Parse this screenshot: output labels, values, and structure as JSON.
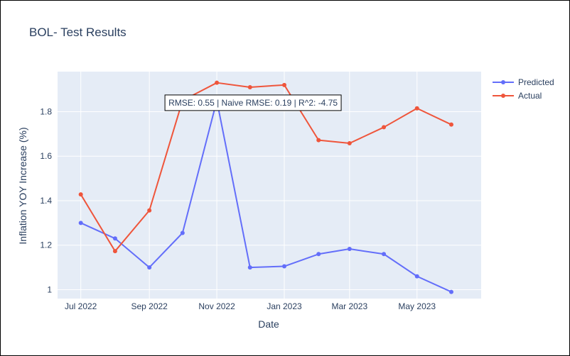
{
  "chart_data": {
    "type": "line",
    "title": "BOL- Test Results",
    "xlabel": "Date",
    "ylabel": "Inflation YOY Increase (%)",
    "x": [
      "2022-07-01",
      "2022-08-01",
      "2022-09-01",
      "2022-10-01",
      "2022-11-01",
      "2022-12-01",
      "2023-01-01",
      "2023-02-01",
      "2023-03-01",
      "2023-04-01",
      "2023-05-01",
      "2023-06-01"
    ],
    "x_ticks": [
      {
        "date": "2022-07-01",
        "label": "Jul 2022"
      },
      {
        "date": "2022-09-01",
        "label": "Sep 2022"
      },
      {
        "date": "2022-11-01",
        "label": "Nov 2022"
      },
      {
        "date": "2023-01-01",
        "label": "Jan 2023"
      },
      {
        "date": "2023-03-01",
        "label": "Mar 2023"
      },
      {
        "date": "2023-05-01",
        "label": "May 2023"
      }
    ],
    "y_ticks": [
      1,
      1.2,
      1.4,
      1.6,
      1.8
    ],
    "y_tick_labels": [
      "1",
      "1.2",
      "1.4",
      "1.6",
      "1.8"
    ],
    "xlim": [
      "2022-06-10",
      "2023-06-28"
    ],
    "ylim": [
      0.96,
      1.98
    ],
    "grid": true,
    "legend_position": "top-right",
    "series": [
      {
        "name": "Predicted",
        "color": "#636efa",
        "values": [
          1.3,
          1.23,
          1.1,
          1.255,
          1.85,
          1.1,
          1.105,
          1.16,
          1.183,
          1.16,
          1.06,
          0.99
        ]
      },
      {
        "name": "Actual",
        "color": "#ef553b",
        "values": [
          1.428,
          1.173,
          1.356,
          1.85,
          1.93,
          1.91,
          1.92,
          1.672,
          1.658,
          1.73,
          1.815,
          1.742
        ]
      }
    ],
    "annotation": {
      "text": "RMSE: 0.55 | Naive RMSE: 0.19 | R^2: -4.75",
      "x": "2022-11-01",
      "y": 1.84
    }
  },
  "colors": {
    "plot_bg": "#e5ecf6",
    "grid": "#ffffff",
    "text": "#2a3f5f"
  }
}
